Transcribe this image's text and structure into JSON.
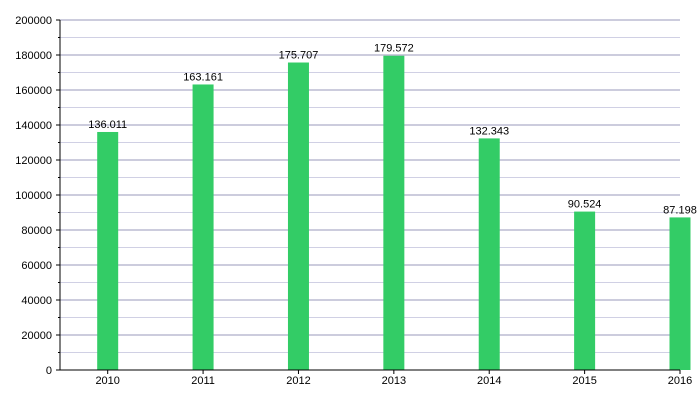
{
  "chart_data": {
    "type": "bar",
    "categories": [
      "2010",
      "2011",
      "2012",
      "2013",
      "2014",
      "2015",
      "2016"
    ],
    "values": [
      136011,
      163161,
      175707,
      179572,
      132343,
      90524,
      87198
    ],
    "data_labels": [
      "136.011",
      "163.161",
      "175.707",
      "179.572",
      "132.343",
      "90.524",
      "87.198"
    ],
    "title": "",
    "xlabel": "",
    "ylabel": "",
    "ylim": [
      0,
      200000
    ],
    "y_ticks": [
      0,
      20000,
      40000,
      60000,
      80000,
      100000,
      120000,
      140000,
      160000,
      180000,
      200000
    ],
    "y_tick_labels": [
      "0",
      "20000",
      "40000",
      "60000",
      "80000",
      "100000",
      "120000",
      "140000",
      "160000",
      "180000",
      "200000"
    ],
    "grid": true,
    "legend": "none",
    "colors": {
      "bar": "#33cc66",
      "grid_major": "#9999bb",
      "grid_minor": "#d0d0e4",
      "axis": "#000000"
    }
  }
}
